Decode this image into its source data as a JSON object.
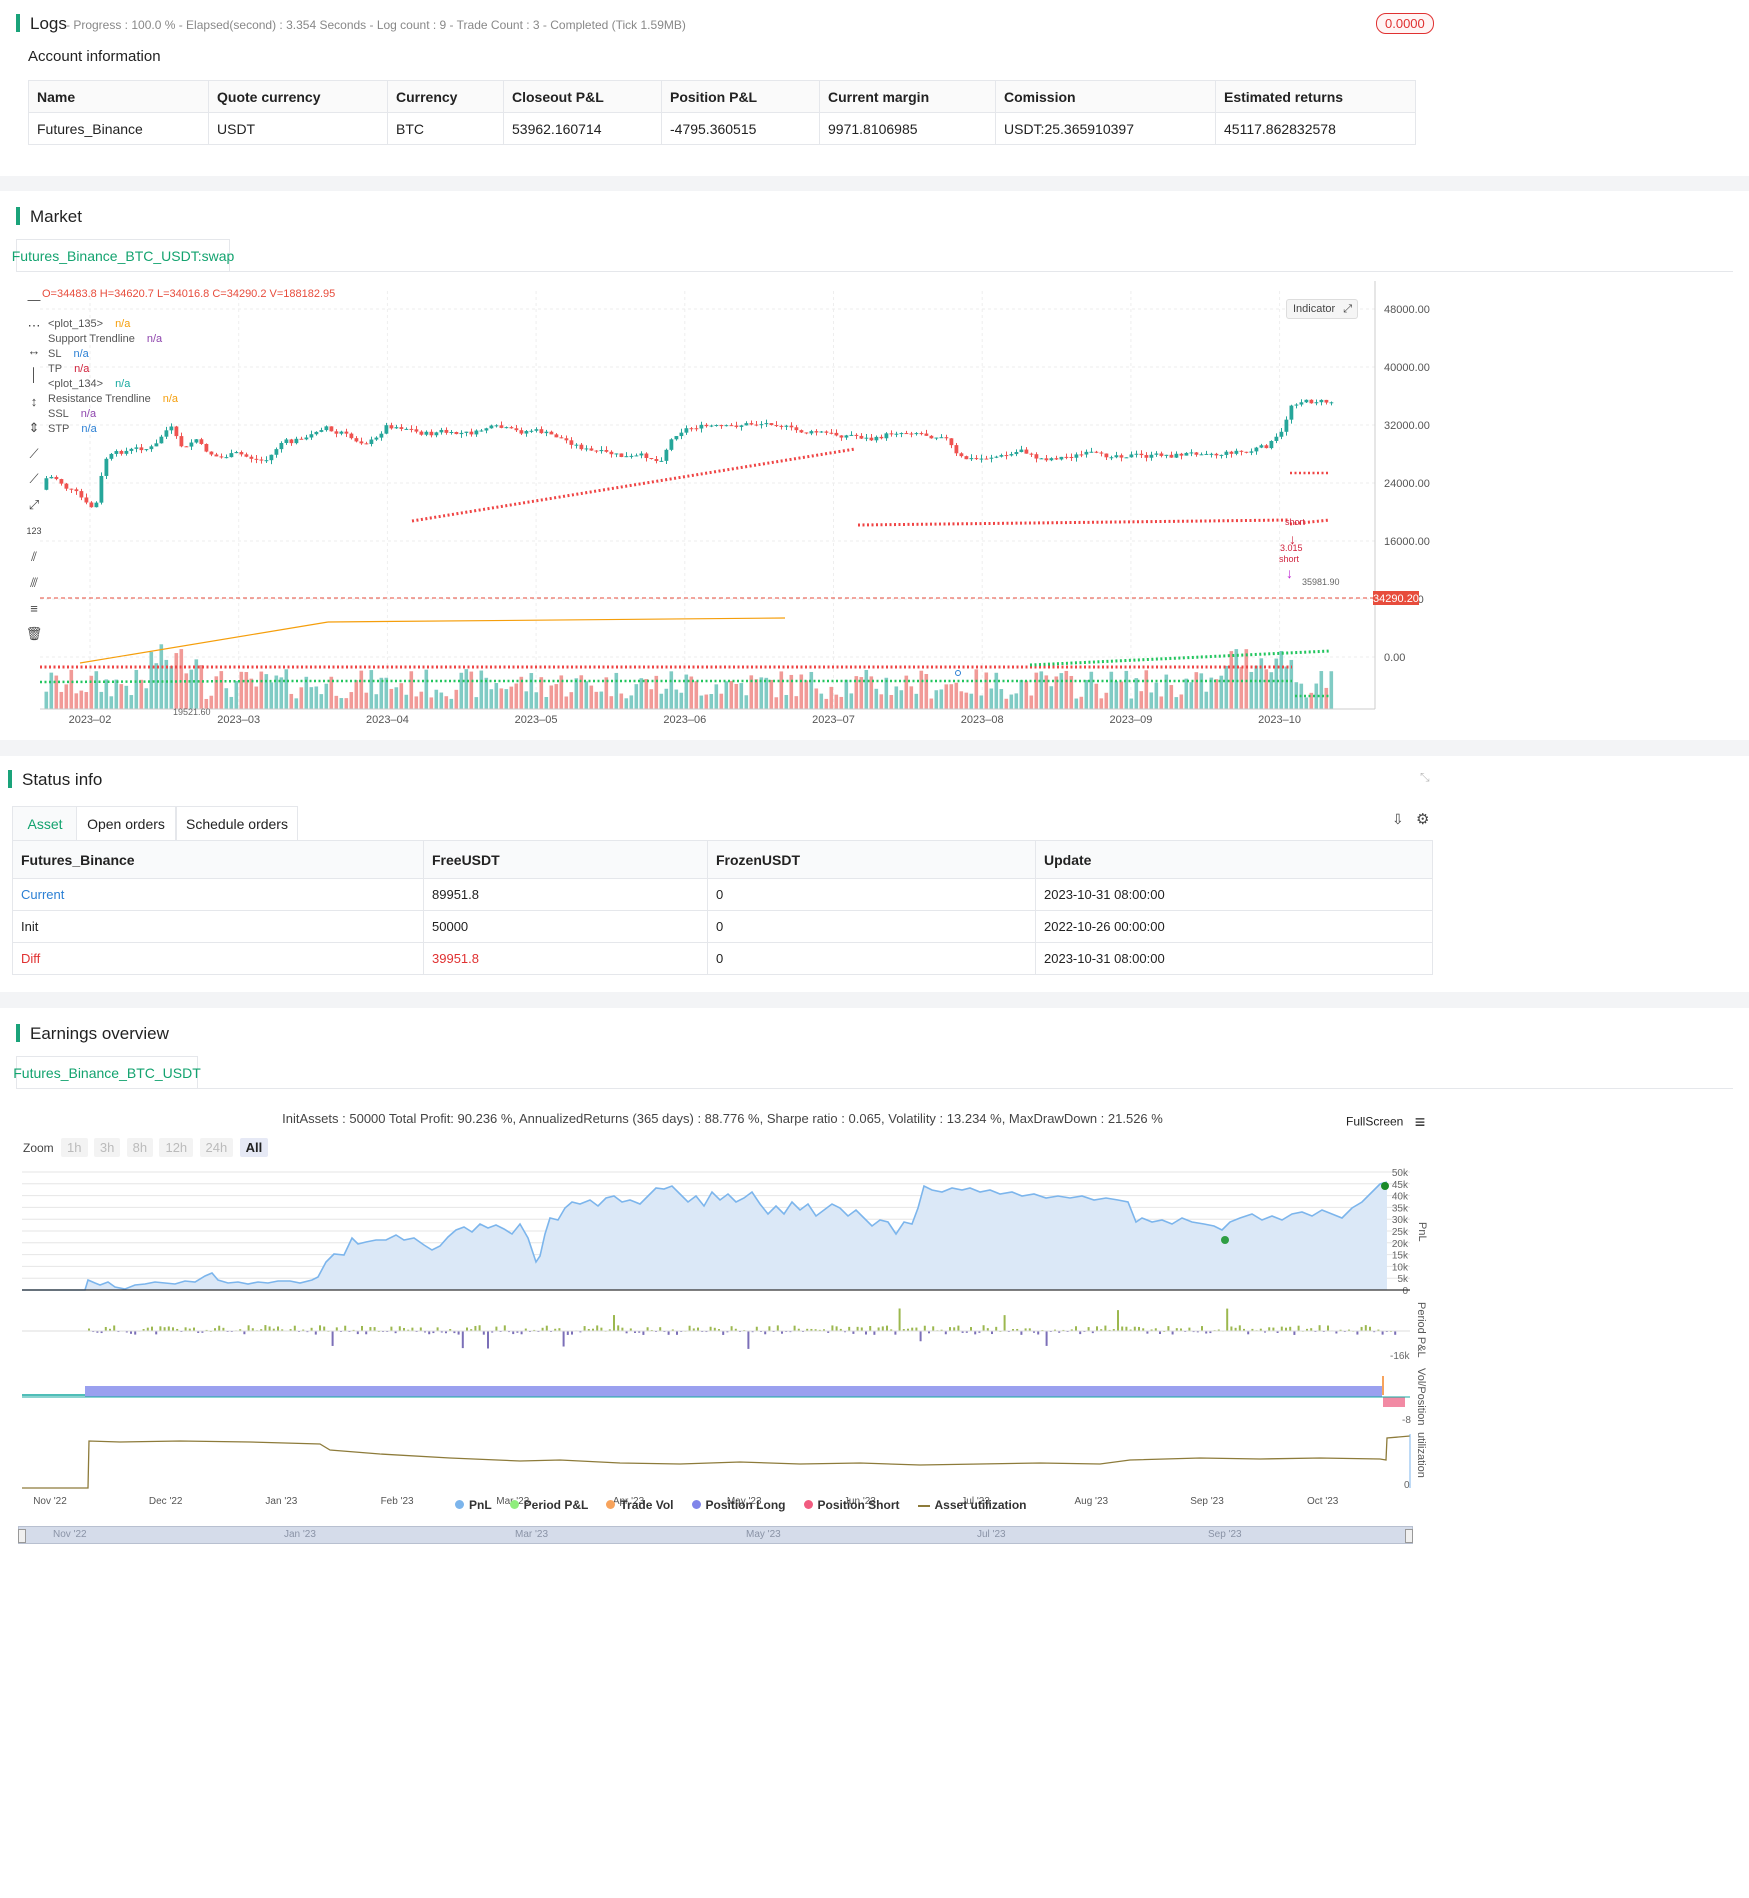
{
  "logs": {
    "title": "Logs",
    "progress_text": "- Progress : 100.0 % - Elapsed(second) : 3.354  Seconds - Log count : 9 - Trade Count : 3 - Completed (Tick 1.59MB)",
    "badge": "0.0000"
  },
  "account": {
    "title": "Account information",
    "headers": [
      "Name",
      "Quote currency",
      "Currency",
      "Closeout P&L",
      "Position P&L",
      "Current margin",
      "Comission",
      "Estimated returns"
    ],
    "row": [
      "Futures_Binance",
      "USDT",
      "BTC",
      "53962.160714",
      "-4795.360515",
      "9971.8106985",
      "USDT:25.365910397",
      "45117.862832578"
    ]
  },
  "market": {
    "title": "Market",
    "tab": "Futures_Binance_BTC_USDT:swap",
    "ohlc": "O=34483.8 H=34620.7 L=34016.8 C=34290.2 V=188182.95",
    "indicator_button": "Indicator",
    "legend": [
      {
        "name": "<plot_135>",
        "value": "n/a",
        "color": "#f59e0b"
      },
      {
        "name": "Support Trendline",
        "value": "n/a",
        "color": "#8e44ad"
      },
      {
        "name": "SL",
        "value": "n/a",
        "color": "#2a7fd4"
      },
      {
        "name": "TP",
        "value": "n/a",
        "color": "#d0213b"
      },
      {
        "name": "<plot_134>",
        "value": "n/a",
        "color": "#17a8a0"
      },
      {
        "name": "Resistance Trendline",
        "value": "n/a",
        "color": "#f59e0b"
      },
      {
        "name": "SSL",
        "value": "n/a",
        "color": "#8e44ad"
      },
      {
        "name": "STP",
        "value": "n/a",
        "color": "#2a7fd4"
      }
    ],
    "y_ticks": [
      "48000.00",
      "40000.00",
      "32000.00",
      "24000.00",
      "16000.00",
      "8000.00",
      "0.00"
    ],
    "x_ticks": [
      "2023–02",
      "2023–03",
      "2023–04",
      "2023–05",
      "2023–06",
      "2023–07",
      "2023–08",
      "2023–09",
      "2023–10"
    ],
    "last_price": "34290.20",
    "annotations": {
      "low": "19521.60",
      "high": "35981.90",
      "short1": "short",
      "short_qty": "3.015",
      "short2": "short"
    }
  },
  "status": {
    "title": "Status info",
    "tabs": [
      "Asset",
      "Open orders",
      "Schedule orders"
    ],
    "headers": [
      "Futures_Binance",
      "FreeUSDT",
      "FrozenUSDT",
      "Update"
    ],
    "rows": [
      [
        "Current",
        "89951.8",
        "0",
        "2023-10-31 08:00:00"
      ],
      [
        "Init",
        "50000",
        "0",
        "2022-10-26 00:00:00"
      ],
      [
        "Diff",
        "39951.8",
        "0",
        "2023-10-31 08:00:00"
      ]
    ]
  },
  "earnings": {
    "title": "Earnings overview",
    "tab": "Futures_Binance_BTC_USDT",
    "summary": "InitAssets : 50000 Total Profit: 90.236 %, AnnualizedReturns (365 days) : 88.776 %, Sharpe ratio : 0.065, Volatility : 13.234 %, MaxDrawDown : 21.526 %",
    "fullscreen": "FullScreen",
    "zoom_label": "Zoom",
    "zoom_buttons": [
      "1h",
      "3h",
      "8h",
      "12h",
      "24h",
      "All"
    ],
    "pnl_ticks": [
      "50k",
      "45k",
      "40k",
      "35k",
      "30k",
      "25k",
      "20k",
      "15k",
      "10k",
      "5k",
      "0"
    ],
    "axis_labels": [
      "PnL",
      "Period P&L",
      "Vol/Position",
      "utilization"
    ],
    "period_tick": "-16k",
    "vol_tick": "-8",
    "util_tick": "0",
    "x_ticks": [
      "Nov '22",
      "Dec '22",
      "Jan '23",
      "Feb '23",
      "Mar '23",
      "Apr '23",
      "May '23",
      "Jun '23",
      "Jul '23",
      "Aug '23",
      "Sep '23",
      "Oct '23"
    ],
    "legend": [
      {
        "name": "PnL",
        "color": "#7cb5ec"
      },
      {
        "name": "Period P&L",
        "color": "#90ed7d"
      },
      {
        "name": "Trade Vol",
        "color": "#f7a35c"
      },
      {
        "name": "Position Long",
        "color": "#8085e9"
      },
      {
        "name": "Position Short",
        "color": "#f15c80"
      },
      {
        "name": "Asset utilization",
        "color": "#8d7b3a"
      }
    ],
    "navigator_ticks": [
      "Nov '22",
      "Jan '23",
      "Mar '23",
      "May '23",
      "Jul '23",
      "Sep '23"
    ]
  }
}
